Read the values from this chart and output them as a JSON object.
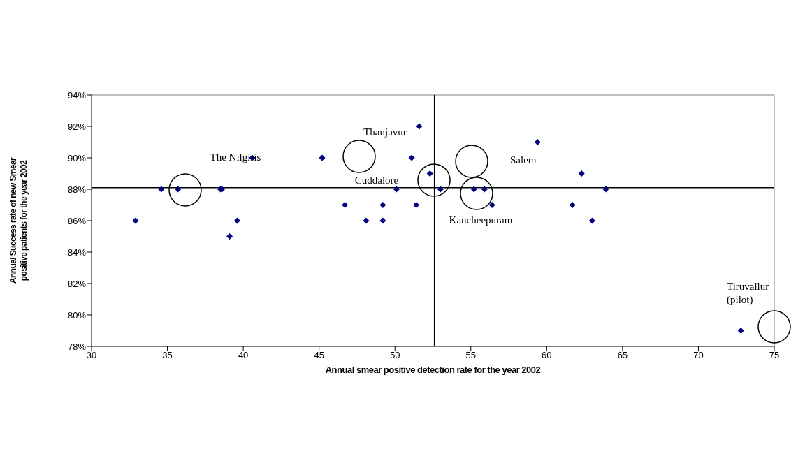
{
  "chart_data": {
    "type": "scatter",
    "xlabel": "Annual smear positive detection rate for the year 2002",
    "ylabel": "Annual Success rate of new Smear positive patients for the year 2002",
    "x": [
      32.9,
      34.6,
      35.7,
      38.5,
      38.6,
      39.6,
      39.1,
      40.6,
      45.2,
      46.7,
      48.1,
      49.2,
      49.2,
      50.1,
      51.1,
      51.4,
      51.6,
      52.3,
      53.0,
      55.2,
      55.9,
      56.4,
      59.4,
      62.3,
      63.9,
      61.7,
      63.0,
      72.8
    ],
    "values": [
      86,
      88,
      88,
      88,
      88,
      86,
      85,
      90,
      90,
      87,
      86,
      87,
      86,
      88,
      90,
      87,
      92,
      89,
      88,
      88,
      88,
      87,
      91,
      89,
      88,
      87,
      86,
      79
    ],
    "color": "#000080",
    "marker": "diamond",
    "grid": false,
    "xlim": [
      30,
      75
    ],
    "xticks": [
      30,
      35,
      40,
      45,
      50,
      55,
      60,
      65,
      70,
      75
    ],
    "ylim": [
      78,
      94
    ],
    "yticks": [
      {
        "value": 78,
        "label": "78%"
      },
      {
        "value": 80,
        "label": "80%"
      },
      {
        "value": 82,
        "label": "82%"
      },
      {
        "value": 84,
        "label": "84%"
      },
      {
        "value": 86,
        "label": "86%"
      },
      {
        "value": 88,
        "label": "88%"
      },
      {
        "value": 90,
        "label": "90%"
      },
      {
        "value": 92,
        "label": "92%"
      },
      {
        "value": 94,
        "label": "94%"
      }
    ],
    "ref_lines": [
      {
        "axis": "x",
        "value": 52.6,
        "color": "#000000"
      },
      {
        "axis": "y",
        "value": 88.1,
        "color": "#000000"
      }
    ],
    "annotations": [
      "The Nilgiris",
      "Thanjavur",
      "Cuddalore",
      "Salem",
      "Kancheepuram",
      "Tiruvallur\n(pilot)"
    ]
  }
}
